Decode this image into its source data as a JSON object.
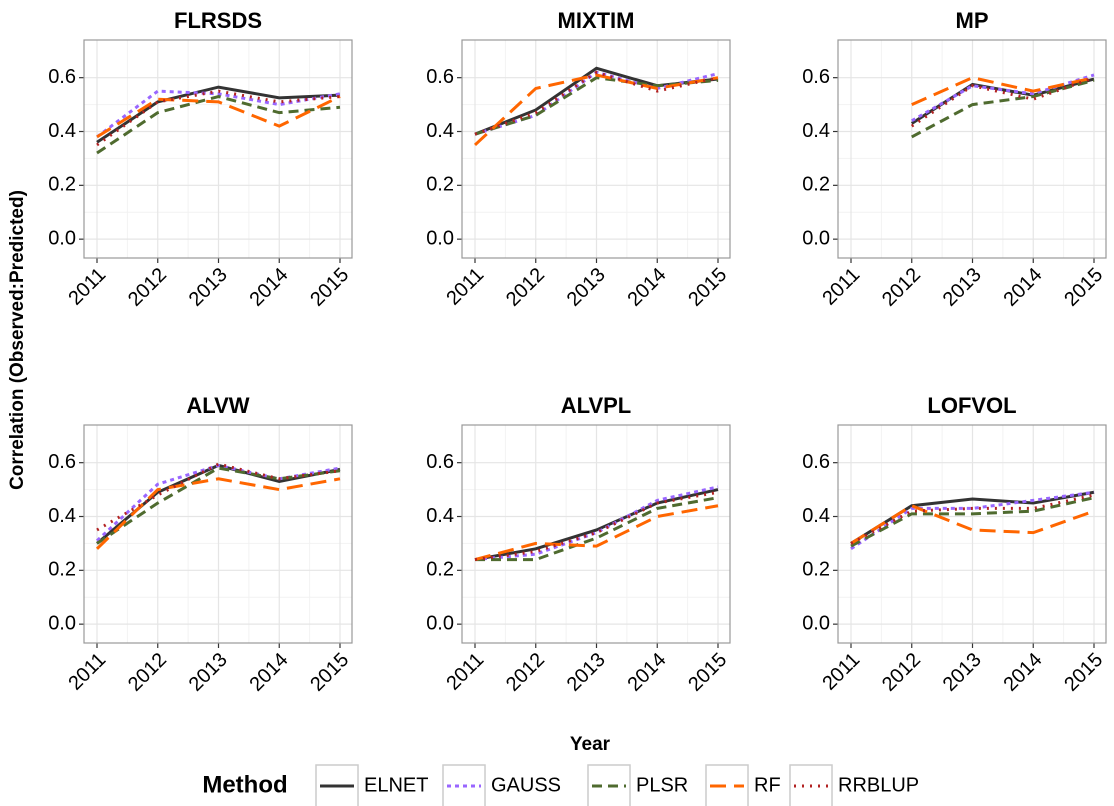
{
  "y_label": "Correlation (Observed:Predicted)",
  "x_label": "Year",
  "legend": {
    "title": "Method",
    "position": "bottom"
  },
  "chart_data": [
    {
      "type": "line",
      "title": "FLRSDS",
      "categories": [
        "2011",
        "2012",
        "2013",
        "2014",
        "2015"
      ],
      "ylim": [
        -0.07,
        0.74
      ],
      "yticks": [
        {
          "value": 0,
          "label": "0.0"
        },
        {
          "value": 0.2,
          "label": "0.2"
        },
        {
          "value": 0.4,
          "label": "0.4"
        },
        {
          "value": 0.6,
          "label": "0.6"
        }
      ],
      "grid": true,
      "series": [
        {
          "name": "ELNET",
          "color": "#333333",
          "dash": "solid",
          "values": [
            0.36,
            0.51,
            0.565,
            0.525,
            0.535
          ]
        },
        {
          "name": "GAUSS",
          "color": "#9966ff",
          "dash": "dotted",
          "values": [
            0.38,
            0.55,
            0.54,
            0.5,
            0.54
          ]
        },
        {
          "name": "PLSR",
          "color": "#4f6b2f",
          "dash": "dashed",
          "values": [
            0.32,
            0.47,
            0.53,
            0.47,
            0.49
          ]
        },
        {
          "name": "RF",
          "color": "#ff6600",
          "dash": "longdash",
          "values": [
            0.38,
            0.52,
            0.51,
            0.42,
            0.53
          ]
        },
        {
          "name": "RRBLUP",
          "color": "#b22222",
          "dash": "dotdot",
          "values": [
            0.35,
            0.51,
            0.55,
            0.51,
            0.53
          ]
        }
      ]
    },
    {
      "type": "line",
      "title": "MIXTIM",
      "categories": [
        "2011",
        "2012",
        "2013",
        "2014",
        "2015"
      ],
      "ylim": [
        -0.07,
        0.74
      ],
      "yticks": [
        {
          "value": 0,
          "label": "0.0"
        },
        {
          "value": 0.2,
          "label": "0.2"
        },
        {
          "value": 0.4,
          "label": "0.4"
        },
        {
          "value": 0.6,
          "label": "0.6"
        }
      ],
      "grid": true,
      "series": [
        {
          "name": "ELNET",
          "color": "#333333",
          "dash": "solid",
          "values": [
            0.39,
            0.48,
            0.635,
            0.57,
            0.595
          ]
        },
        {
          "name": "GAUSS",
          "color": "#9966ff",
          "dash": "dotted",
          "values": [
            0.39,
            0.46,
            0.62,
            0.56,
            0.615
          ]
        },
        {
          "name": "PLSR",
          "color": "#4f6b2f",
          "dash": "dashed",
          "values": [
            0.39,
            0.46,
            0.6,
            0.57,
            0.59
          ]
        },
        {
          "name": "RF",
          "color": "#ff6600",
          "dash": "longdash",
          "values": [
            0.35,
            0.56,
            0.61,
            0.56,
            0.6
          ]
        },
        {
          "name": "RRBLUP",
          "color": "#b22222",
          "dash": "dotdot",
          "values": [
            0.39,
            0.47,
            0.62,
            0.55,
            0.6
          ]
        }
      ]
    },
    {
      "type": "line",
      "title": "MP",
      "categories": [
        "2011",
        "2012",
        "2013",
        "2014",
        "2015"
      ],
      "ylim": [
        -0.07,
        0.74
      ],
      "yticks": [
        {
          "value": 0,
          "label": "0.0"
        },
        {
          "value": 0.2,
          "label": "0.2"
        },
        {
          "value": 0.4,
          "label": "0.4"
        },
        {
          "value": 0.6,
          "label": "0.6"
        }
      ],
      "grid": true,
      "series": [
        {
          "name": "ELNET",
          "color": "#333333",
          "dash": "solid",
          "values": [
            null,
            0.43,
            0.575,
            0.535,
            0.595
          ]
        },
        {
          "name": "GAUSS",
          "color": "#9966ff",
          "dash": "dotted",
          "values": [
            null,
            0.44,
            0.57,
            0.54,
            0.61
          ]
        },
        {
          "name": "PLSR",
          "color": "#4f6b2f",
          "dash": "dashed",
          "values": [
            null,
            0.38,
            0.5,
            0.53,
            0.59
          ]
        },
        {
          "name": "RF",
          "color": "#ff6600",
          "dash": "longdash",
          "values": [
            null,
            0.5,
            0.6,
            0.55,
            0.6
          ]
        },
        {
          "name": "RRBLUP",
          "color": "#b22222",
          "dash": "dotdot",
          "values": [
            null,
            0.42,
            0.57,
            0.52,
            0.6
          ]
        }
      ]
    },
    {
      "type": "line",
      "title": "ALVW",
      "categories": [
        "2011",
        "2012",
        "2013",
        "2014",
        "2015"
      ],
      "ylim": [
        -0.07,
        0.74
      ],
      "yticks": [
        {
          "value": 0,
          "label": "0.0"
        },
        {
          "value": 0.2,
          "label": "0.2"
        },
        {
          "value": 0.4,
          "label": "0.4"
        },
        {
          "value": 0.6,
          "label": "0.6"
        }
      ],
      "grid": true,
      "series": [
        {
          "name": "ELNET",
          "color": "#333333",
          "dash": "solid",
          "values": [
            0.3,
            0.49,
            0.59,
            0.53,
            0.575
          ]
        },
        {
          "name": "GAUSS",
          "color": "#9966ff",
          "dash": "dotted",
          "values": [
            0.31,
            0.52,
            0.59,
            0.54,
            0.58
          ]
        },
        {
          "name": "PLSR",
          "color": "#4f6b2f",
          "dash": "dashed",
          "values": [
            0.3,
            0.45,
            0.58,
            0.54,
            0.57
          ]
        },
        {
          "name": "RF",
          "color": "#ff6600",
          "dash": "longdash",
          "values": [
            0.28,
            0.5,
            0.54,
            0.5,
            0.54
          ]
        },
        {
          "name": "RRBLUP",
          "color": "#b22222",
          "dash": "dotdot",
          "values": [
            0.35,
            0.48,
            0.595,
            0.54,
            0.57
          ]
        }
      ]
    },
    {
      "type": "line",
      "title": "ALVPL",
      "categories": [
        "2011",
        "2012",
        "2013",
        "2014",
        "2015"
      ],
      "ylim": [
        -0.07,
        0.74
      ],
      "yticks": [
        {
          "value": 0,
          "label": "0.0"
        },
        {
          "value": 0.2,
          "label": "0.2"
        },
        {
          "value": 0.4,
          "label": "0.4"
        },
        {
          "value": 0.6,
          "label": "0.6"
        }
      ],
      "grid": true,
      "series": [
        {
          "name": "ELNET",
          "color": "#333333",
          "dash": "solid",
          "values": [
            0.24,
            0.28,
            0.35,
            0.45,
            0.5
          ]
        },
        {
          "name": "GAUSS",
          "color": "#9966ff",
          "dash": "dotted",
          "values": [
            0.24,
            0.26,
            0.34,
            0.46,
            0.51
          ]
        },
        {
          "name": "PLSR",
          "color": "#4f6b2f",
          "dash": "dashed",
          "values": [
            0.24,
            0.24,
            0.32,
            0.43,
            0.47
          ]
        },
        {
          "name": "RF",
          "color": "#ff6600",
          "dash": "longdash",
          "values": [
            0.24,
            0.3,
            0.29,
            0.4,
            0.44
          ]
        },
        {
          "name": "RRBLUP",
          "color": "#b22222",
          "dash": "dotdot",
          "values": [
            0.24,
            0.27,
            0.34,
            0.45,
            0.49
          ]
        }
      ]
    },
    {
      "type": "line",
      "title": "LOFVOL",
      "categories": [
        "2011",
        "2012",
        "2013",
        "2014",
        "2015"
      ],
      "ylim": [
        -0.07,
        0.74
      ],
      "yticks": [
        {
          "value": 0,
          "label": "0.0"
        },
        {
          "value": 0.2,
          "label": "0.2"
        },
        {
          "value": 0.4,
          "label": "0.4"
        },
        {
          "value": 0.6,
          "label": "0.6"
        }
      ],
      "grid": true,
      "series": [
        {
          "name": "ELNET",
          "color": "#333333",
          "dash": "solid",
          "values": [
            0.3,
            0.44,
            0.465,
            0.45,
            0.49
          ]
        },
        {
          "name": "GAUSS",
          "color": "#9966ff",
          "dash": "dotted",
          "values": [
            0.28,
            0.43,
            0.43,
            0.46,
            0.49
          ]
        },
        {
          "name": "PLSR",
          "color": "#4f6b2f",
          "dash": "dashed",
          "values": [
            0.29,
            0.41,
            0.41,
            0.42,
            0.47
          ]
        },
        {
          "name": "RF",
          "color": "#ff6600",
          "dash": "longdash",
          "values": [
            0.3,
            0.44,
            0.35,
            0.34,
            0.42
          ]
        },
        {
          "name": "RRBLUP",
          "color": "#b22222",
          "dash": "dotdot",
          "values": [
            0.3,
            0.42,
            0.43,
            0.43,
            0.48
          ]
        }
      ]
    }
  ]
}
